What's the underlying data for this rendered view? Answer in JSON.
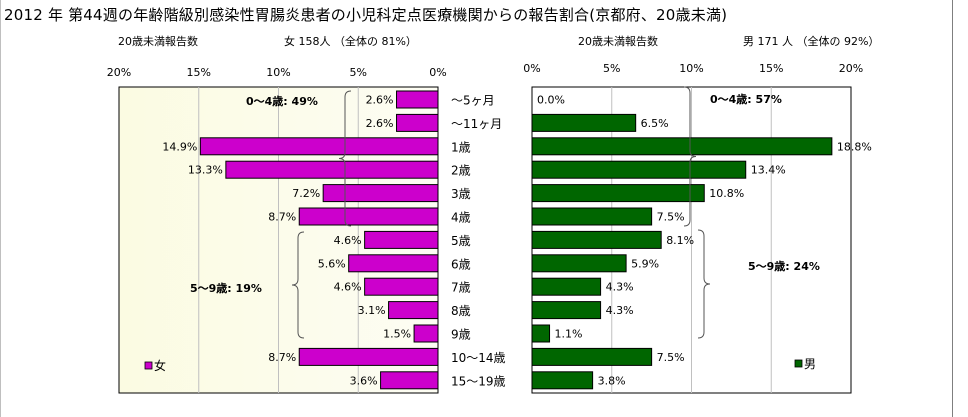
{
  "title": "2012 年 第44週の年齢階級別感染性胃腸炎患者の小児科定点医療機関からの報告割合(京都府、20歳未満)",
  "chart_data": [
    {
      "type": "bar",
      "subtitle_left": "20歳未満報告数",
      "subtitle_right": "女  158人 （全体の  81%）",
      "legend": "女",
      "legend_position": "bottom-left",
      "color": "#cc00cc",
      "xlim": [
        0,
        20
      ],
      "x_direction": "reversed",
      "x_ticks": [
        "20%",
        "15%",
        "10%",
        "5%",
        "0%"
      ],
      "categories": [
        "～5ヶ月",
        "～11ヶ月",
        "1歳",
        "2歳",
        "3歳",
        "4歳",
        "5歳",
        "6歳",
        "7歳",
        "8歳",
        "9歳",
        "10～14歳",
        "15～19歳"
      ],
      "values": [
        2.6,
        2.6,
        14.9,
        13.3,
        7.2,
        8.7,
        4.6,
        5.6,
        4.6,
        3.1,
        1.5,
        8.7,
        3.6
      ],
      "value_labels": [
        "2.6%",
        "2.6%",
        "14.9%",
        "13.3%",
        "7.2%",
        "8.7%",
        "4.6%",
        "5.6%",
        "4.6%",
        "3.1%",
        "1.5%",
        "8.7%",
        "3.6%"
      ],
      "annotations": [
        {
          "text": "0～4歳: 49%",
          "from": 0,
          "to": 5
        },
        {
          "text": "5～9歳: 19%",
          "from": 6,
          "to": 10
        }
      ]
    },
    {
      "type": "bar",
      "subtitle_left": "20歳未満報告数",
      "subtitle_right": "男  171 人 （全体の  92%）",
      "legend": "男",
      "legend_position": "bottom-right",
      "color": "#006600",
      "xlim": [
        0,
        20
      ],
      "x_ticks": [
        "0%",
        "5%",
        "10%",
        "15%",
        "20%"
      ],
      "values": [
        0.0,
        6.5,
        18.8,
        13.4,
        10.8,
        7.5,
        8.1,
        5.9,
        4.3,
        4.3,
        1.1,
        7.5,
        3.8
      ],
      "value_labels": [
        "0.0%",
        "6.5%",
        "18.8%",
        "13.4%",
        "10.8%",
        "7.5%",
        "8.1%",
        "5.9%",
        "4.3%",
        "4.3%",
        "1.1%",
        "7.5%",
        "3.8%"
      ],
      "annotations": [
        {
          "text": "0～4歳: 57%",
          "from": 0,
          "to": 5
        },
        {
          "text": "5～9歳: 24%",
          "from": 6,
          "to": 10
        }
      ]
    }
  ]
}
